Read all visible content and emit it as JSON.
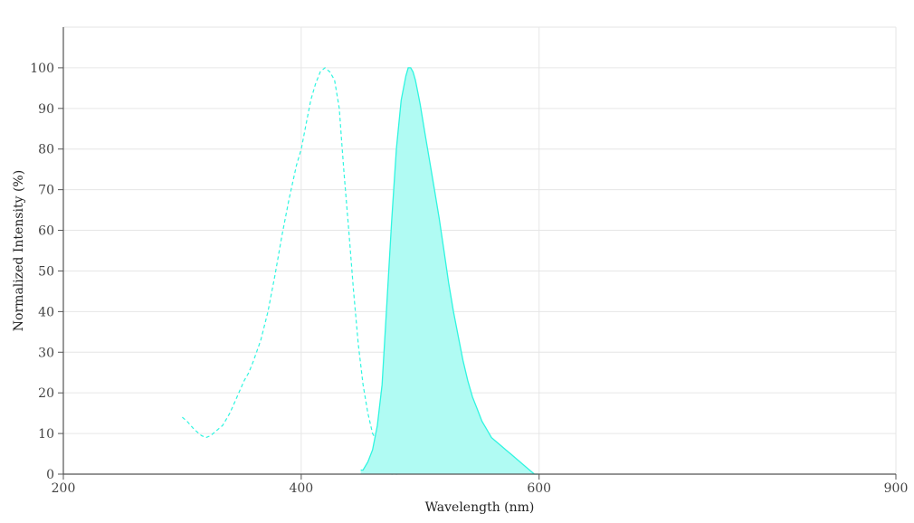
{
  "chart_data": {
    "type": "area",
    "xlabel": "Wavelength (nm)",
    "ylabel": "Normalized Intensity (%)",
    "xlim": [
      200,
      900
    ],
    "ylim": [
      0,
      110
    ],
    "x_ticks": [
      200,
      400,
      600,
      900
    ],
    "y_ticks": [
      0,
      10,
      20,
      30,
      40,
      50,
      60,
      70,
      80,
      90,
      100
    ],
    "grid": true,
    "colors": {
      "series": "#2ff5e0",
      "fill": "#b0fbf3",
      "grid": "#e6e6e6",
      "axis": "#555555"
    },
    "series": [
      {
        "style": "dashed",
        "x": [
          300,
          304,
          310,
          316,
          320,
          324,
          328,
          334,
          340,
          346,
          352,
          356,
          360,
          366,
          372,
          378,
          384,
          390,
          396,
          400,
          404,
          408,
          412,
          416,
          420,
          424,
          428,
          432,
          434,
          436,
          440,
          444,
          448,
          452,
          456,
          460,
          464,
          468,
          472,
          476,
          478,
          480,
          481
        ],
        "y": [
          14,
          13,
          11,
          9.5,
          9,
          9.5,
          10.5,
          12,
          15,
          19,
          23,
          25,
          28,
          33,
          40,
          49,
          59,
          68,
          76,
          80,
          86,
          92,
          96,
          99,
          100,
          99,
          97,
          90,
          82,
          74,
          60,
          45,
          32,
          22,
          15,
          10,
          8,
          4,
          1,
          0,
          0,
          0,
          0
        ]
      },
      {
        "style": "filled",
        "x": [
          450,
          452,
          456,
          460,
          464,
          468,
          472,
          476,
          480,
          484,
          488,
          490,
          492,
          494,
          496,
          498,
          500,
          504,
          508,
          512,
          516,
          520,
          524,
          528,
          532,
          536,
          540,
          544,
          548,
          552,
          556,
          560,
          564,
          568,
          572,
          576,
          580,
          584,
          588,
          592,
          596,
          598,
          599
        ],
        "y": [
          1,
          1,
          3,
          6,
          12,
          22,
          42,
          62,
          80,
          92,
          98,
          100,
          100,
          99,
          97,
          94,
          91,
          84,
          77,
          70,
          63,
          55,
          47,
          40,
          34,
          28,
          23,
          19,
          16,
          13,
          11,
          9,
          8,
          7,
          6,
          5,
          4,
          3,
          2,
          1,
          0,
          0,
          0
        ]
      }
    ]
  }
}
